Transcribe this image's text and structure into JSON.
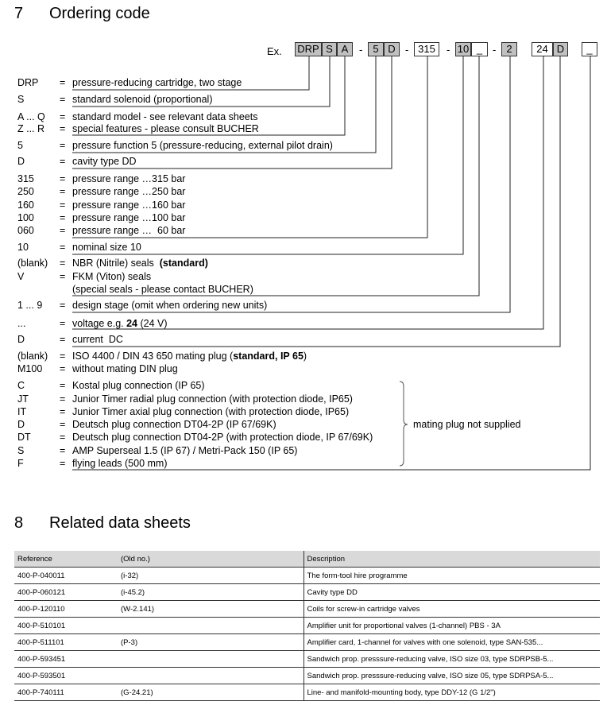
{
  "section7": {
    "number": "7",
    "title": "Ordering code"
  },
  "example_label": "Ex.",
  "code_boxes": [
    {
      "text": "DRP",
      "shaded": true
    },
    {
      "text": "S",
      "shaded": true
    },
    {
      "text": "A",
      "shaded": true
    },
    {
      "text": "5",
      "shaded": true
    },
    {
      "text": "D",
      "shaded": true
    },
    {
      "text": "315",
      "shaded": false
    },
    {
      "text": "10",
      "shaded": true
    },
    {
      "text": "_",
      "shaded": false
    },
    {
      "text": "2",
      "shaded": true
    },
    {
      "text": "24",
      "shaded": false
    },
    {
      "text": "D",
      "shaded": true
    },
    {
      "text": "_",
      "shaded": false
    }
  ],
  "separator": "-",
  "rows": [
    {
      "code": "DRP",
      "desc": "pressure-reducing cartridge, two stage"
    },
    {
      "code": "S",
      "desc": "standard solenoid (proportional)"
    },
    {
      "code": "A ... Q",
      "desc": "standard model - see relevant data sheets"
    },
    {
      "code": "Z ... R",
      "desc": "special features - please consult BUCHER"
    },
    {
      "code": "5",
      "desc": "pressure function 5 (pressure-reducing, external pilot drain)"
    },
    {
      "code": "D",
      "desc": "cavity type DD"
    },
    {
      "code": "315",
      "desc": "pressure range …315 bar"
    },
    {
      "code": "250",
      "desc": "pressure range …250 bar"
    },
    {
      "code": "160",
      "desc": "pressure range …160 bar"
    },
    {
      "code": "100",
      "desc": "pressure range …100 bar"
    },
    {
      "code": "060",
      "desc": "pressure range …  60 bar"
    },
    {
      "code": "10",
      "desc": "nominal size 10"
    },
    {
      "code": "(blank)",
      "desc": "NBR (Nitrile) seals  ",
      "bold": "(standard)"
    },
    {
      "code": "V",
      "desc": "FKM (Viton) seals"
    },
    {
      "code": "",
      "eq": false,
      "desc": "(special seals - please contact BUCHER)"
    },
    {
      "code": "1 ... 9",
      "desc": "design stage (omit when ordering new units)"
    },
    {
      "code": "...",
      "desc": "voltage e.g. ",
      "bold": "24",
      "after": " (24 V)"
    },
    {
      "code": "D",
      "desc": "current  DC"
    },
    {
      "code": "(blank)",
      "desc": "ISO 4400 / DIN 43 650 mating plug (",
      "bold": "standard, IP 65",
      "after": ")"
    },
    {
      "code": "M100",
      "desc": "without mating DIN plug"
    },
    {
      "code": "C",
      "desc": "Kostal plug connection (IP 65)"
    },
    {
      "code": "JT",
      "desc": "Junior Timer radial plug connection (with protection diode, IP65)"
    },
    {
      "code": "IT",
      "desc": "Junior Timer axial plug connection (with protection diode, IP65)"
    },
    {
      "code": "D",
      "desc": "Deutsch plug connection DT04-2P (IP 67/69K)"
    },
    {
      "code": "DT",
      "desc": "Deutsch plug connection DT04-2P (with protection diode, IP 67/69K)"
    },
    {
      "code": "S",
      "desc": "AMP Superseal 1.5 (IP 67) / Metri-Pack 150 (IP 65)"
    },
    {
      "code": "F",
      "desc": "flying leads (500 mm)"
    }
  ],
  "equals": "=",
  "bracket_note": "mating plug not supplied",
  "section8": {
    "number": "8",
    "title": "Related data sheets"
  },
  "table": {
    "headers": [
      "Reference",
      "(Old no.)",
      "Description"
    ],
    "rows": [
      [
        "400-P-040011",
        "(i-32)",
        "The form-tool hire programme"
      ],
      [
        "400-P-060121",
        "(i-45.2)",
        "Cavity type DD"
      ],
      [
        "400-P-120110",
        "(W-2.141)",
        "Coils for screw-in cartridge valves"
      ],
      [
        "400-P-510101",
        "",
        "Amplifier unit for proportional valves (1-channel) PBS - 3A"
      ],
      [
        "400-P-511101",
        "(P-3)",
        "Amplifier card, 1-channel for valves with one solenoid, type SAN-535..."
      ],
      [
        "400-P-593451",
        "",
        "Sandwich prop. presssure-reducing valve, ISO size 03, type SDRPSB-5..."
      ],
      [
        "400-P-593501",
        "",
        "Sandwich prop. presssure-reducing valve, ISO size 05, type SDRPSA-5..."
      ],
      [
        "400-P-740111",
        "(G-24.21)",
        "Line- and manifold-mounting body, type DDY-12 (G 1/2\")"
      ]
    ]
  }
}
